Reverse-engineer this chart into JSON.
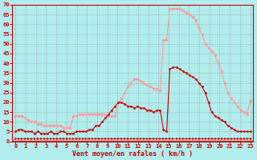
{
  "title": "",
  "xlabel": "Vent moyen/en rafales ( km/h )",
  "ylabel": "",
  "bg_color": "#b2eded",
  "grid_color": "#888888",
  "line_avg_color": "#cc0000",
  "line_gust_color": "#ff9999",
  "line_dir_color": "#cc0000",
  "ylim": [
    0,
    70
  ],
  "xlim": [
    -0.3,
    23.3
  ],
  "yticks": [
    0,
    5,
    10,
    15,
    20,
    25,
    30,
    35,
    40,
    45,
    50,
    55,
    60,
    65,
    70
  ],
  "xticks": [
    0,
    1,
    2,
    3,
    4,
    5,
    6,
    7,
    8,
    9,
    10,
    11,
    12,
    13,
    14,
    15,
    16,
    17,
    18,
    19,
    20,
    21,
    22,
    23
  ],
  "wind_avg": [
    5,
    6,
    6,
    5,
    5,
    5,
    4,
    5,
    4,
    4,
    4,
    5,
    4,
    4,
    5,
    5,
    4,
    4,
    4,
    5,
    5,
    5,
    5,
    6,
    6,
    8,
    8,
    10,
    12,
    14,
    16,
    18,
    20,
    20,
    19,
    18,
    18,
    17,
    18,
    17,
    17,
    16,
    16,
    15,
    16,
    16,
    6,
    5,
    37,
    38,
    38,
    37,
    36,
    35,
    34,
    33,
    32,
    30,
    28,
    25,
    20,
    15,
    13,
    12,
    11,
    10,
    8,
    7,
    6,
    5,
    5,
    5,
    5,
    5
  ],
  "wind_gust": [
    13,
    13,
    13,
    12,
    11,
    10,
    10,
    9,
    9,
    8,
    8,
    8,
    8,
    8,
    8,
    7,
    7,
    7,
    13,
    13,
    14,
    14,
    14,
    14,
    14,
    14,
    14,
    14,
    14,
    13,
    13,
    13,
    20,
    22,
    25,
    28,
    30,
    32,
    32,
    31,
    30,
    29,
    28,
    27,
    27,
    26,
    52,
    52,
    68,
    68,
    68,
    68,
    67,
    66,
    65,
    64,
    62,
    58,
    55,
    50,
    48,
    46,
    44,
    40,
    36,
    30,
    25,
    22,
    20,
    18,
    16,
    15,
    14,
    21
  ],
  "wind_dir_vals": [
    1.5,
    1.5,
    1.5,
    1.5,
    1.5,
    1.5,
    1.5,
    1.5,
    1.5,
    1.5,
    1.5,
    1.5,
    1.5,
    1.5,
    1.5,
    1.5,
    1.5,
    1.5,
    1.5,
    1.5,
    1.5,
    1.5,
    1.5,
    1.5,
    1.5,
    1.5,
    1.5,
    1.5,
    1.5,
    1.5,
    1.5,
    1.5,
    1.5,
    1.5,
    1.5,
    1.5,
    1.5,
    1.5,
    1.5,
    1.5,
    1.5,
    1.5,
    1.5,
    1.5,
    1.5,
    1.5,
    1.5,
    1.5,
    1.5,
    1.5,
    1.5,
    1.5,
    1.5,
    1.5,
    1.5,
    1.5,
    1.5,
    1.5,
    1.5,
    1.5,
    1.5,
    1.5,
    1.5,
    1.5,
    1.5,
    1.5,
    1.5,
    1.5,
    1.5,
    1.5,
    1.5,
    1.5,
    1.5,
    1.5
  ]
}
